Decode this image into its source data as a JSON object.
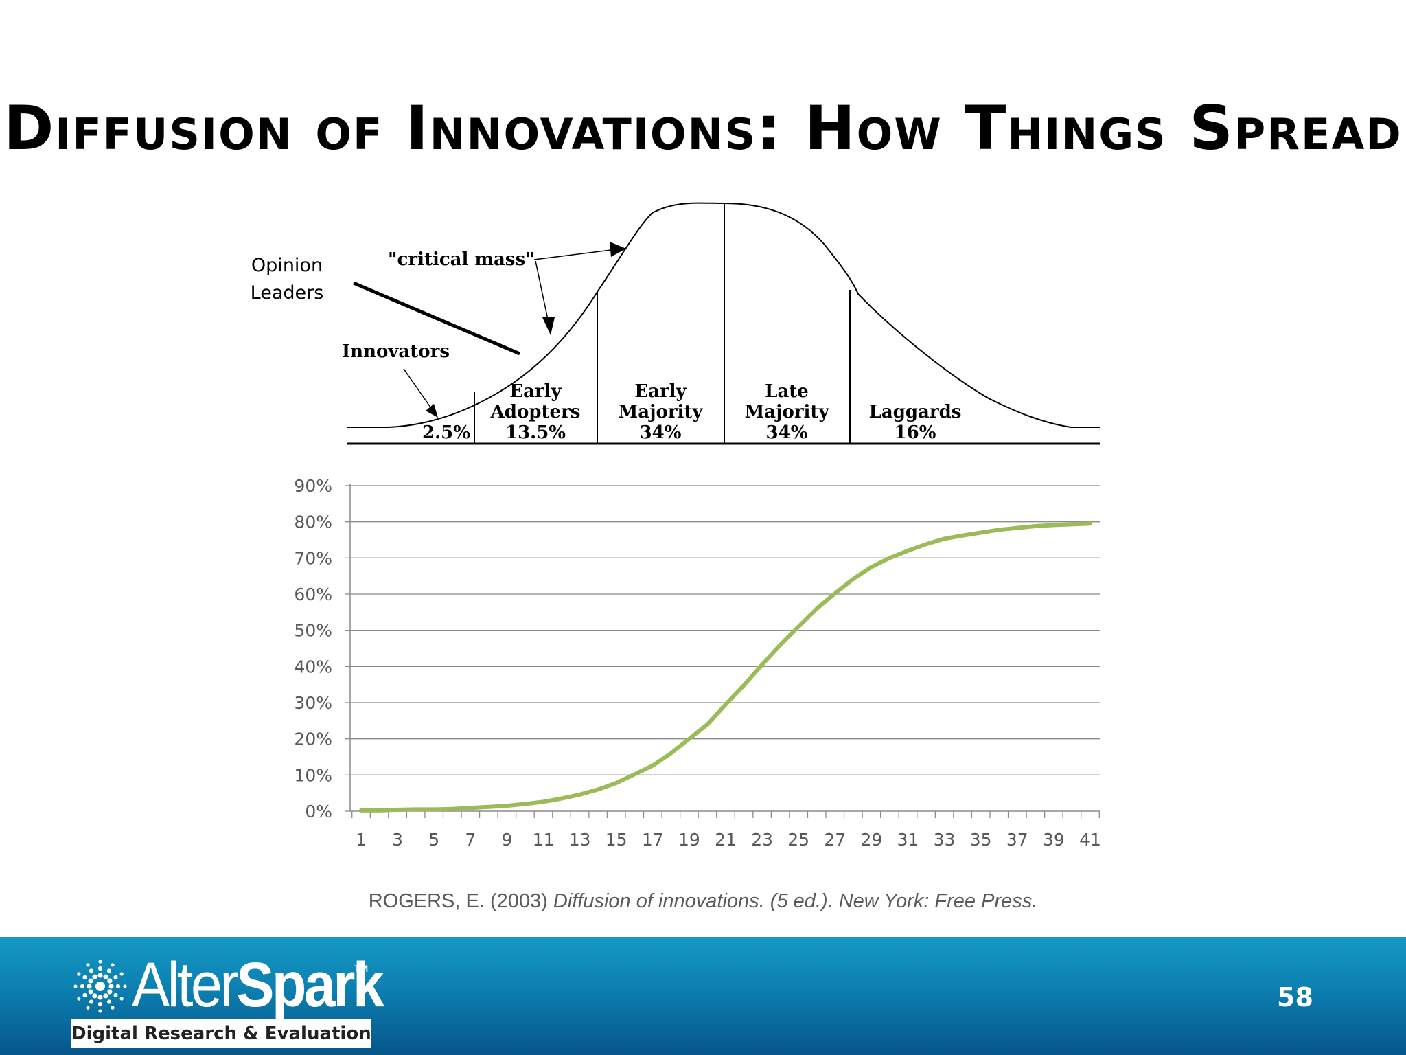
{
  "slide": {
    "title": "Diffusion of Innovations: How Things Spread",
    "page_number": "58"
  },
  "bell_diagram": {
    "segments": [
      {
        "lines": [
          "2.5%"
        ]
      },
      {
        "lines": [
          "Early",
          "Adopters",
          "13.5%"
        ]
      },
      {
        "lines": [
          "Early",
          "Majority",
          "34%"
        ]
      },
      {
        "lines": [
          "Late",
          "Majority",
          "34%"
        ]
      },
      {
        "lines": [
          "Laggards",
          "16%"
        ]
      }
    ],
    "innovators_label": "Innovators",
    "critical_mass_label": "\"critical mass\"",
    "opinion_leaders_label": [
      "Opinion",
      "Leaders"
    ]
  },
  "chart_data": {
    "type": "line",
    "title": "",
    "xlabel": "",
    "ylabel": "",
    "ylim": [
      0,
      90
    ],
    "y_ticks": [
      "0%",
      "10%",
      "20%",
      "30%",
      "40%",
      "50%",
      "60%",
      "70%",
      "80%",
      "90%"
    ],
    "x_tick_labels": [
      "1",
      "3",
      "5",
      "7",
      "9",
      "11",
      "13",
      "15",
      "17",
      "19",
      "21",
      "23",
      "25",
      "27",
      "29",
      "31",
      "33",
      "35",
      "37",
      "39",
      "41"
    ],
    "grid": true,
    "series": [
      {
        "color": "#9bbb59",
        "x": [
          1,
          2,
          3,
          4,
          5,
          6,
          7,
          8,
          9,
          10,
          11,
          12,
          13,
          14,
          15,
          16,
          17,
          18,
          19,
          20,
          21,
          22,
          23,
          24,
          25,
          26,
          27,
          28,
          29,
          30,
          31,
          32,
          33,
          34,
          35,
          36,
          37,
          38,
          39,
          40,
          41
        ],
        "values": [
          0.2,
          0.2,
          0.4,
          0.5,
          0.5,
          0.6,
          0.9,
          1.2,
          1.5,
          2.0,
          2.6,
          3.5,
          4.6,
          6.0,
          7.8,
          10.2,
          12.6,
          16.0,
          20.0,
          24.0,
          29.5,
          34.8,
          40.5,
          46.0,
          51.0,
          56.0,
          60.2,
          64.2,
          67.5,
          70.0,
          72.0,
          73.8,
          75.3,
          76.2,
          77.0,
          77.8,
          78.3,
          78.8,
          79.1,
          79.3,
          79.5
        ]
      }
    ]
  },
  "citation": {
    "author": "ROGERS, E. (2003) ",
    "title": "Diffusion of innovations. (5 ed.). New York: Free Press."
  },
  "footer": {
    "brand_thin": "Alter",
    "brand_bold": "Spark",
    "trademark": "TM",
    "tagline": "Digital Research & Evaluation",
    "background_color": "#0c7fb0"
  }
}
